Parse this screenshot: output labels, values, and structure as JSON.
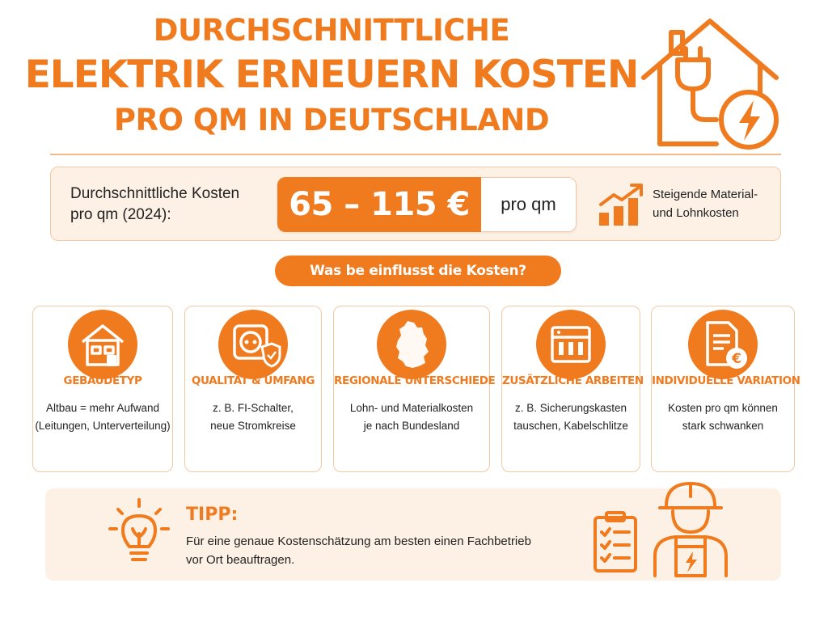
{
  "title": {
    "line1": "Durchschnittliche",
    "line2": "Elektrik erneuern Kosten",
    "line3": "pro qm in Deutschland"
  },
  "header_icon": "house-plug-lightning-icon",
  "average_cost": {
    "label_line1": "Durchschnittliche Kosten",
    "label_line2": "pro qm (2024):",
    "range": "65 – 115 €",
    "unit": "pro qm",
    "trend_icon": "rising-bar-chart-icon",
    "trend_line1": "Steigende Material-",
    "trend_line2": "und Lohnkosten"
  },
  "factors_heading": "Was be einflusst die Kosten?",
  "factors": [
    {
      "icon": "building-icon",
      "title": "Gebäudetyp",
      "desc_line1": "Altbau = mehr Aufwand",
      "desc_line2": "(Leitungen, Unterverteilung)"
    },
    {
      "icon": "socket-shield-icon",
      "title": "Qualität & Umfang",
      "desc_line1": "z. B. FI-Schalter,",
      "desc_line2": "neue Stromkreise"
    },
    {
      "icon": "germany-map-icon",
      "title": "Regionale Unterschiede",
      "desc_line1": "Lohn- und Materialkosten",
      "desc_line2": "je nach Bundesland"
    },
    {
      "icon": "fuse-box-icon",
      "title": "Zusätzliche Arbeiten",
      "desc_line1": "z. B. Sicherungskasten",
      "desc_line2": "tauschen, Kabelschlitze"
    },
    {
      "icon": "document-euro-icon",
      "title": "Individuelle Variation",
      "desc_line1": "Kosten pro qm können",
      "desc_line2": "stark schwanken"
    }
  ],
  "tip": {
    "icon": "lightbulb-icon",
    "title": "TIPP:",
    "text_line1": "Für eine genaue Kostenschätzung am besten einen Fachbetrieb",
    "text_line2": "vor Ort beauftragen.",
    "illustration": "electrician-clipboard-icon"
  },
  "colors": {
    "accent": "#f07a1e",
    "light_bg": "#fdf1e6",
    "border": "#f3c9a3"
  }
}
